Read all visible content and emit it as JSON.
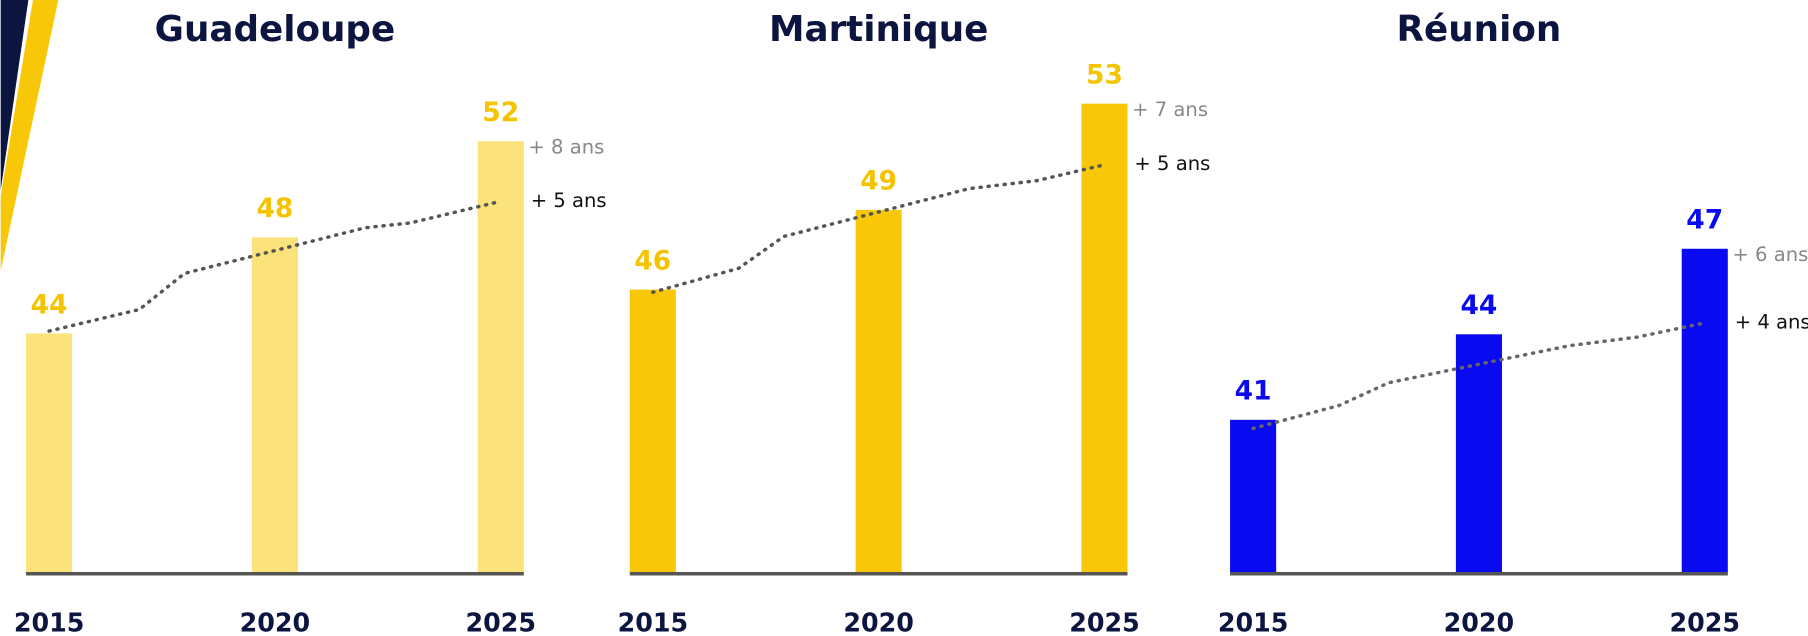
{
  "chart_data": [
    {
      "type": "bar",
      "title": "Guadeloupe",
      "categories": [
        "2015",
        "2020",
        "2025"
      ],
      "values": [
        44,
        48,
        52
      ],
      "color": "#fbe27a",
      "label_color": "#f5c400",
      "ylim": [
        34,
        55
      ],
      "xlim": [
        2015,
        2025
      ],
      "trend": {
        "x": [
          2015,
          2017,
          2018,
          2022,
          2023,
          2025
        ],
        "values": [
          44.1,
          45.0,
          46.5,
          48.4,
          48.6,
          49.5
        ],
        "color": "#555555"
      },
      "bar_annotation": "+ 8 ans",
      "bar_annotation_color": "#888888",
      "trend_annotation": "+ 5 ans",
      "trend_annotation_color": "#111111"
    },
    {
      "type": "bar",
      "title": "Martinique",
      "categories": [
        "2015",
        "2020",
        "2025"
      ],
      "values": [
        46,
        49,
        53
      ],
      "color": "#f8c808",
      "label_color": "#f5c400",
      "ylim": [
        35.3,
        54.3
      ],
      "xlim": [
        2015,
        2025
      ],
      "trend": {
        "x": [
          2015,
          2016.9,
          2017.9,
          2022,
          2023.5,
          2025
        ],
        "values": [
          45.9,
          46.8,
          48.0,
          49.8,
          50.1,
          50.7
        ],
        "color": "#555555"
      },
      "bar_annotation": "+ 7 ans",
      "bar_annotation_color": "#888888",
      "trend_annotation": "+ 5 ans",
      "trend_annotation_color": "#111111"
    },
    {
      "type": "bar",
      "title": "Réunion",
      "categories": [
        "2015",
        "2020",
        "2025"
      ],
      "values": [
        41,
        44,
        47
      ],
      "color": "#0a0af0",
      "label_color": "#0a0af0",
      "ylim": [
        35.6,
        53.3
      ],
      "xlim": [
        2015,
        2025
      ],
      "trend": {
        "x": [
          2015,
          2016.9,
          2018,
          2022,
          2023.5,
          2025
        ],
        "values": [
          40.7,
          41.5,
          42.3,
          43.6,
          43.9,
          44.4
        ],
        "color": "#666666"
      },
      "bar_annotation": "+ 6 ans",
      "bar_annotation_color": "#888888",
      "trend_annotation": "+ 4 ans",
      "trend_annotation_color": "#111111"
    }
  ]
}
